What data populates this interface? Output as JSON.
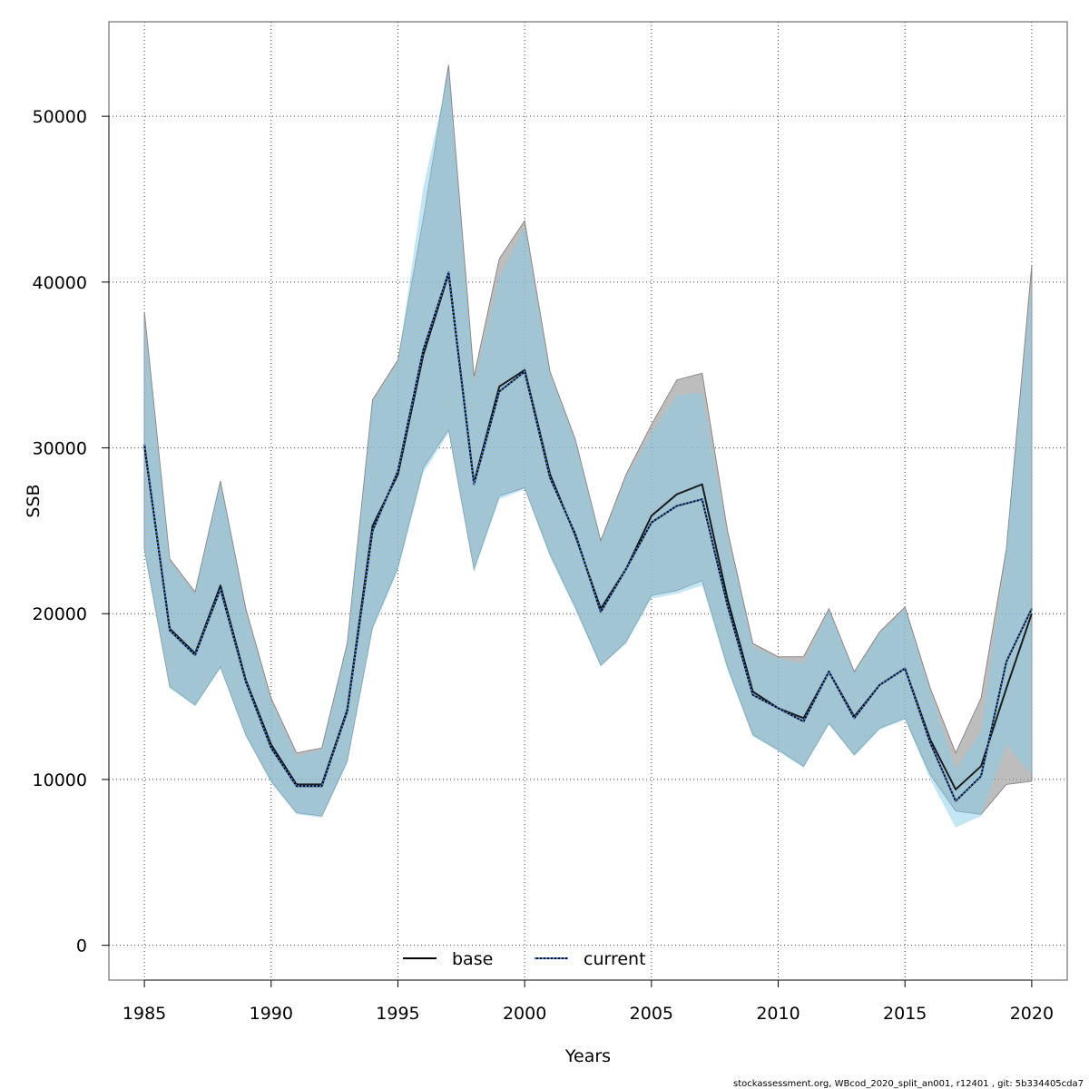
{
  "chart_data": {
    "type": "line",
    "title": "",
    "xlabel": "Years",
    "ylabel": "SSB",
    "xlim": [
      1983.6,
      2021.4
    ],
    "ylim": [
      -2100,
      55700
    ],
    "grid": true,
    "x_ticks": [
      1985,
      1990,
      1995,
      2000,
      2005,
      2010,
      2015,
      2020
    ],
    "y_ticks": [
      0,
      10000,
      20000,
      30000,
      40000,
      50000
    ],
    "x_tick_labels": [
      "1985",
      "1990",
      "1995",
      "2000",
      "2005",
      "2010",
      "2015",
      "2020"
    ],
    "y_tick_labels": [
      "0",
      "10000",
      "20000",
      "30000",
      "40000",
      "50000"
    ],
    "x": [
      1985,
      1986,
      1987,
      1988,
      1989,
      1990,
      1991,
      1992,
      1993,
      1994,
      1995,
      1996,
      1997,
      1998,
      1999,
      2000,
      2001,
      2002,
      2003,
      2004,
      2005,
      2006,
      2007,
      2008,
      2009,
      2010,
      2011,
      2012,
      2013,
      2014,
      2015,
      2016,
      2017,
      2018,
      2019,
      2020
    ],
    "series": [
      {
        "name": "base",
        "line_style": "solid",
        "line_color": "#000000",
        "band_color": "#999999",
        "values": [
          30100,
          19100,
          17600,
          21700,
          16000,
          12100,
          9700,
          9700,
          14200,
          25300,
          28400,
          35600,
          40500,
          27900,
          33700,
          34700,
          28400,
          24700,
          20300,
          22700,
          25900,
          27200,
          27800,
          20900,
          15300,
          14300,
          13700,
          16500,
          13800,
          15700,
          16700,
          12400,
          9400,
          10800,
          15500,
          20000
        ],
        "lower": [
          23900,
          15600,
          14500,
          16800,
          12700,
          9900,
          8000,
          7800,
          11100,
          19200,
          22800,
          28800,
          31100,
          22700,
          27100,
          27600,
          23600,
          20400,
          16900,
          18300,
          21100,
          21400,
          22000,
          16800,
          12700,
          11800,
          10800,
          13400,
          11500,
          13100,
          13700,
          10300,
          8100,
          7900,
          9700,
          9900
        ],
        "upper": [
          38200,
          23300,
          21300,
          28000,
          20300,
          14900,
          11600,
          11900,
          18200,
          32900,
          35300,
          43800,
          53100,
          34300,
          41400,
          43700,
          34600,
          30500,
          24400,
          28400,
          31400,
          34100,
          34500,
          25000,
          18200,
          17400,
          17400,
          20300,
          16500,
          18900,
          20400,
          15500,
          11600,
          14900,
          23900,
          41000
        ]
      },
      {
        "name": "current",
        "line_style": "dotted",
        "line_color": "#3a7fd0",
        "band_color": "#87ceeb",
        "values": [
          30200,
          19000,
          17500,
          21500,
          15900,
          11900,
          9600,
          9600,
          14100,
          25000,
          28600,
          35900,
          40600,
          27800,
          33400,
          34600,
          28200,
          24800,
          20100,
          22700,
          25500,
          26500,
          26900,
          20500,
          15100,
          14300,
          13500,
          16500,
          13700,
          15700,
          16700,
          12200,
          8700,
          10200,
          17100,
          20300
        ],
        "lower": [
          23700,
          15500,
          14400,
          16700,
          12600,
          9800,
          7900,
          7700,
          11000,
          19000,
          22600,
          28500,
          30900,
          22500,
          26900,
          27500,
          23400,
          20200,
          16800,
          18200,
          20900,
          21200,
          21700,
          16600,
          12600,
          11700,
          10700,
          13300,
          11400,
          13000,
          13600,
          10000,
          7100,
          7800,
          12100,
          10300
        ],
        "upper": [
          37900,
          23200,
          21200,
          27900,
          20100,
          14700,
          11400,
          11800,
          18100,
          32700,
          35200,
          45700,
          52700,
          33900,
          40300,
          43300,
          34400,
          30400,
          24300,
          28200,
          30900,
          33200,
          33300,
          24700,
          18000,
          17300,
          17000,
          20200,
          16400,
          18800,
          20300,
          15300,
          10600,
          12900,
          23800,
          40200
        ]
      }
    ],
    "legend_position": "bottom-center",
    "legend": [
      "base",
      "current"
    ]
  },
  "footer": {
    "text": "stockassessment.org, WBcod_2020_split_an001, r12401 , git: 5b334405cda7"
  }
}
